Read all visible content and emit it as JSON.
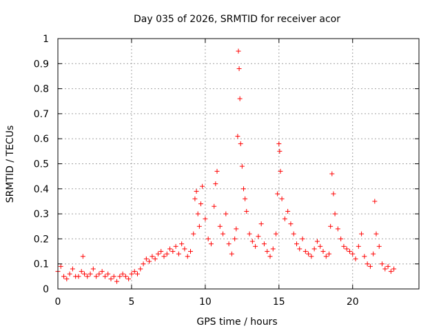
{
  "chart_data": {
    "type": "scatter",
    "title": "Day 035 of 2026, SRMTID for receiver acor",
    "xlabel": "GPS time / hours",
    "ylabel": "SRMTID / TECUs",
    "xlim": [
      0,
      24.5
    ],
    "ylim": [
      0,
      1
    ],
    "xticks": [
      "0",
      "5",
      "10",
      "15",
      "20"
    ],
    "xtick_values": [
      0,
      5,
      10,
      15,
      20
    ],
    "yticks": [
      "0",
      "0.1",
      "0.2",
      "0.3",
      "0.4",
      "0.5",
      "0.6",
      "0.7",
      "0.8",
      "0.9",
      "1"
    ],
    "ytick_values": [
      0,
      0.1,
      0.2,
      0.3,
      0.4,
      0.5,
      0.6,
      0.7,
      0.8,
      0.9,
      1
    ],
    "grid": true,
    "marker": "+",
    "color": "#ff0000",
    "series": [
      {
        "name": "SRMTID",
        "x": [
          0.0,
          0.2,
          0.4,
          0.6,
          0.8,
          1.0,
          1.2,
          1.4,
          1.6,
          1.7,
          1.8,
          2.0,
          2.2,
          2.4,
          2.6,
          2.8,
          3.0,
          3.2,
          3.4,
          3.6,
          3.8,
          4.0,
          4.2,
          4.4,
          4.6,
          4.8,
          5.0,
          5.2,
          5.4,
          5.6,
          5.8,
          6.0,
          6.2,
          6.4,
          6.6,
          6.8,
          7.0,
          7.2,
          7.4,
          7.6,
          7.8,
          8.0,
          8.2,
          8.4,
          8.6,
          8.8,
          9.0,
          9.2,
          9.3,
          9.4,
          9.5,
          9.6,
          9.7,
          9.8,
          10.0,
          10.2,
          10.4,
          10.6,
          10.7,
          10.8,
          11.0,
          11.2,
          11.4,
          11.6,
          11.8,
          12.0,
          12.1,
          12.2,
          12.25,
          12.3,
          12.35,
          12.4,
          12.5,
          12.6,
          12.7,
          12.8,
          13.0,
          13.2,
          13.4,
          13.6,
          13.8,
          14.0,
          14.2,
          14.4,
          14.6,
          14.8,
          14.9,
          15.0,
          15.05,
          15.1,
          15.2,
          15.4,
          15.6,
          15.8,
          16.0,
          16.2,
          16.4,
          16.6,
          16.8,
          17.0,
          17.2,
          17.4,
          17.6,
          17.8,
          18.0,
          18.2,
          18.4,
          18.5,
          18.6,
          18.7,
          18.8,
          19.0,
          19.2,
          19.4,
          19.6,
          19.8,
          20.0,
          20.2,
          20.4,
          20.6,
          20.8,
          21.0,
          21.2,
          21.4,
          21.5,
          21.6,
          21.8,
          22.0,
          22.2,
          22.4,
          22.6,
          22.8
        ],
        "y": [
          0.07,
          0.09,
          0.05,
          0.04,
          0.06,
          0.08,
          0.05,
          0.05,
          0.07,
          0.13,
          0.06,
          0.05,
          0.06,
          0.08,
          0.05,
          0.06,
          0.07,
          0.05,
          0.06,
          0.04,
          0.05,
          0.03,
          0.05,
          0.06,
          0.05,
          0.04,
          0.06,
          0.07,
          0.06,
          0.08,
          0.1,
          0.12,
          0.11,
          0.13,
          0.12,
          0.14,
          0.15,
          0.13,
          0.14,
          0.16,
          0.15,
          0.17,
          0.14,
          0.18,
          0.16,
          0.13,
          0.15,
          0.22,
          0.36,
          0.39,
          0.3,
          0.25,
          0.34,
          0.41,
          0.28,
          0.2,
          0.18,
          0.33,
          0.42,
          0.47,
          0.25,
          0.22,
          0.3,
          0.18,
          0.14,
          0.2,
          0.24,
          0.61,
          0.95,
          0.88,
          0.76,
          0.58,
          0.49,
          0.4,
          0.36,
          0.31,
          0.22,
          0.19,
          0.17,
          0.21,
          0.26,
          0.18,
          0.15,
          0.13,
          0.16,
          0.22,
          0.38,
          0.58,
          0.55,
          0.47,
          0.36,
          0.28,
          0.31,
          0.26,
          0.22,
          0.18,
          0.16,
          0.2,
          0.15,
          0.14,
          0.13,
          0.16,
          0.19,
          0.17,
          0.15,
          0.13,
          0.14,
          0.25,
          0.46,
          0.38,
          0.3,
          0.24,
          0.2,
          0.17,
          0.16,
          0.15,
          0.14,
          0.12,
          0.17,
          0.22,
          0.13,
          0.1,
          0.09,
          0.14,
          0.35,
          0.22,
          0.17,
          0.1,
          0.08,
          0.09,
          0.07,
          0.08
        ]
      }
    ]
  }
}
